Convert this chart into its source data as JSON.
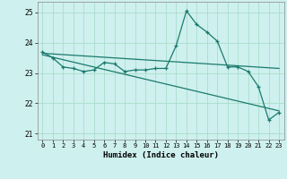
{
  "xlabel": "Humidex (Indice chaleur)",
  "ylabel": "",
  "background_color": "#cef0ee",
  "grid_color": "#aaddcc",
  "line_color": "#1a7a6e",
  "xlim": [
    -0.5,
    23.5
  ],
  "ylim": [
    20.8,
    25.35
  ],
  "yticks": [
    21,
    22,
    23,
    24,
    25
  ],
  "xticks": [
    0,
    1,
    2,
    3,
    4,
    5,
    6,
    7,
    8,
    9,
    10,
    11,
    12,
    13,
    14,
    15,
    16,
    17,
    18,
    19,
    20,
    21,
    22,
    23
  ],
  "x": [
    0,
    1,
    2,
    3,
    4,
    5,
    6,
    7,
    8,
    9,
    10,
    11,
    12,
    13,
    14,
    15,
    16,
    17,
    18,
    19,
    20,
    21,
    22,
    23
  ],
  "y_main": [
    23.7,
    23.5,
    23.2,
    23.15,
    23.05,
    23.1,
    23.35,
    23.3,
    23.05,
    23.1,
    23.1,
    23.15,
    23.15,
    23.9,
    25.05,
    24.6,
    24.35,
    24.05,
    23.2,
    23.2,
    23.05,
    22.55,
    21.45,
    21.7
  ],
  "y_linear1_start": 23.65,
  "y_linear1_end": 23.15,
  "y_linear2_start": 23.6,
  "y_linear2_end": 21.75
}
